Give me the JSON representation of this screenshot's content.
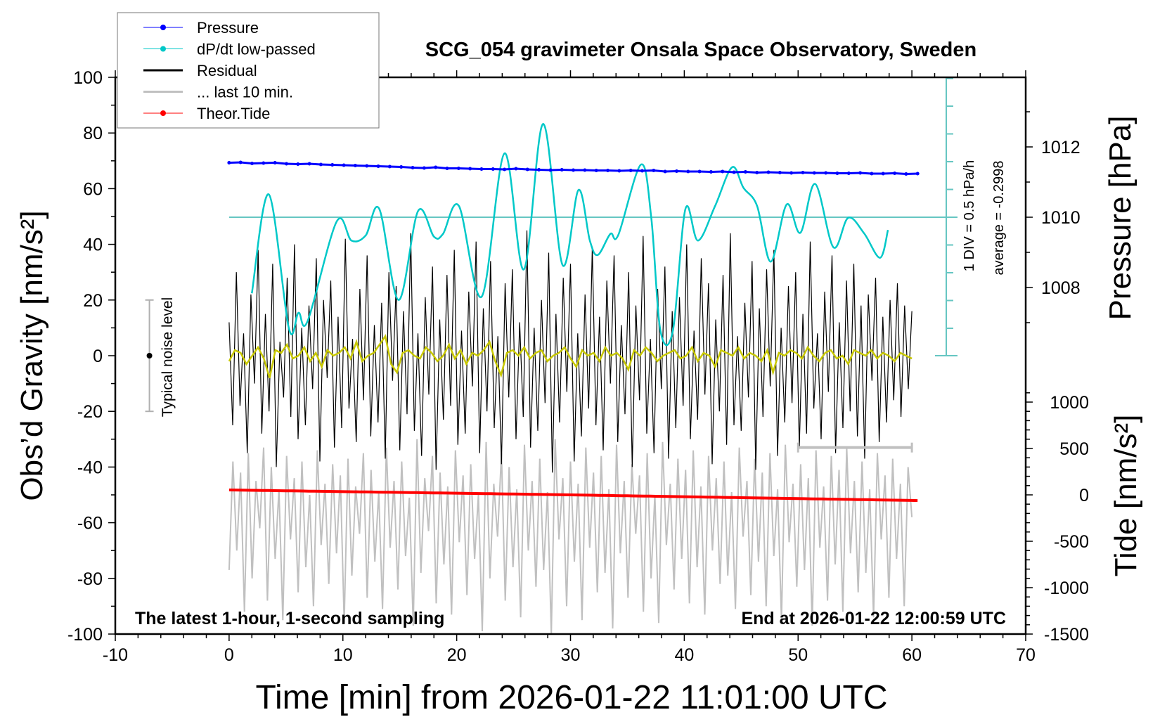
{
  "chart_data": {
    "type": "line",
    "title": "SCG_054 gravimeter Onsala Space Observatory, Sweden",
    "xlabel": "Time [min] from 2026-01-22 11:01:00 UTC",
    "ylabel_left": "Obs’d Gravity [nm/s²]",
    "ylabel_right_pressure": "Pressure [hPa]",
    "ylabel_right_tide": "Tide [nm/s²]",
    "xlim": [
      -10,
      70
    ],
    "ylim_left": [
      -100,
      100
    ],
    "ylim_tide": [
      -1500,
      1000
    ],
    "x_ticks": [
      "-10",
      "0",
      "10",
      "20",
      "30",
      "40",
      "50",
      "60",
      "70"
    ],
    "y_left_ticks": [
      "100",
      "80",
      "60",
      "40",
      "20",
      "0",
      "-20",
      "-40",
      "-60",
      "-80",
      "-100"
    ],
    "pressure_ticks": [
      "1012",
      "1010",
      "1008"
    ],
    "tide_ticks": [
      "1000",
      "500",
      "0",
      "-500",
      "-1000",
      "-1500"
    ],
    "grid": false,
    "legend_position": "top-left",
    "legend": [
      {
        "label": "Pressure",
        "color": "#0000ff",
        "marker": "dot"
      },
      {
        "label": "dP/dt low-passed",
        "color": "#00c8c8",
        "marker": "dot"
      },
      {
        "label": "Residual",
        "color": "#000000",
        "marker": "line"
      },
      {
        "label": "... last 10 min.",
        "color": "#c0c0c0",
        "marker": "line"
      },
      {
        "label": "Theor.Tide",
        "color": "#ff0000",
        "marker": "dot"
      }
    ],
    "annotations": {
      "left": "The latest 1-hour, 1-second sampling",
      "right": "End at 2026-01-22 12:00:59 UTC",
      "noise": "Typical noise level",
      "div": "1 DIV = 0.5 hPa/h",
      "average": "average = -0.2998"
    },
    "noise_level": {
      "x": -7,
      "low": -20,
      "high": 20
    },
    "last10_window": {
      "from": 50,
      "to": 60,
      "level": -33
    },
    "dpdt_average": -0.2998,
    "dpdt_div": 0.5,
    "series": {
      "pressure": {
        "t_start": 0,
        "t_end": 60.5,
        "color": "#0000ff",
        "values": [
          1011.55,
          1011.56,
          1011.53,
          1011.54,
          1011.55,
          1011.52,
          1011.51,
          1011.52,
          1011.5,
          1011.49,
          1011.48,
          1011.47,
          1011.46,
          1011.45,
          1011.44,
          1011.43,
          1011.41,
          1011.4,
          1011.42,
          1011.39,
          1011.39,
          1011.38,
          1011.37,
          1011.37,
          1011.36,
          1011.38,
          1011.36,
          1011.35,
          1011.34,
          1011.35,
          1011.34,
          1011.34,
          1011.33,
          1011.33,
          1011.32,
          1011.33,
          1011.32,
          1011.33,
          1011.3,
          1011.31,
          1011.3,
          1011.3,
          1011.29,
          1011.3,
          1011.28,
          1011.29,
          1011.27,
          1011.28,
          1011.27,
          1011.26,
          1011.27,
          1011.26,
          1011.26,
          1011.25,
          1011.25,
          1011.26,
          1011.24,
          1011.24,
          1011.25,
          1011.23,
          1011.24
        ]
      },
      "dpdt": {
        "color": "#00c8c8",
        "points": [
          [
            2.0,
            -1.67
          ],
          [
            3.5,
            0.11
          ],
          [
            5.25,
            -2.3
          ],
          [
            6.1,
            -2.02
          ],
          [
            6.9,
            -2.17
          ],
          [
            9.45,
            -0.38
          ],
          [
            10.75,
            -0.72
          ],
          [
            12.0,
            -0.63
          ],
          [
            13.2,
            -0.15
          ],
          [
            14.9,
            -1.79
          ],
          [
            16.6,
            -0.19
          ],
          [
            18.0,
            -0.65
          ],
          [
            18.8,
            -0.6
          ],
          [
            20.2,
            -0.1
          ],
          [
            22.2,
            -1.73
          ],
          [
            24.2,
            0.85
          ],
          [
            25.9,
            -1.24
          ],
          [
            27.6,
            1.38
          ],
          [
            29.3,
            -1.16
          ],
          [
            30.7,
            0.19
          ],
          [
            31.7,
            -0.72
          ],
          [
            32.4,
            -0.98
          ],
          [
            33.5,
            -0.6
          ],
          [
            34.2,
            -0.62
          ],
          [
            36.2,
            0.65
          ],
          [
            37.1,
            -0.31
          ],
          [
            37.9,
            -2.34
          ],
          [
            39.0,
            -2.34
          ],
          [
            40.1,
            -0.15
          ],
          [
            41.2,
            -0.72
          ],
          [
            42.7,
            -0.1
          ],
          [
            44.2,
            0.6
          ],
          [
            45.2,
            0.23
          ],
          [
            46.4,
            -0.1
          ],
          [
            47.6,
            -1.1
          ],
          [
            49.0,
            -0.07
          ],
          [
            50.2,
            -0.58
          ],
          [
            51.5,
            0.3
          ],
          [
            53.1,
            -0.84
          ],
          [
            54.4,
            -0.31
          ],
          [
            55.8,
            -0.59
          ],
          [
            57.2,
            -1.03
          ],
          [
            57.9,
            -0.53
          ]
        ]
      },
      "residual": {
        "t_start": 0,
        "t_end": 60,
        "color": "#000000",
        "values": [
          12,
          -25,
          30,
          -18,
          8,
          -35,
          22,
          -10,
          38,
          -28,
          15,
          -20,
          33,
          -40,
          5,
          -15,
          28,
          -22,
          40,
          -30,
          10,
          -25,
          18,
          -12,
          35,
          -38,
          20,
          -8,
          27,
          -33,
          14,
          -26,
          42,
          -19,
          6,
          -31,
          24,
          -16,
          36,
          -29,
          11,
          -24,
          19,
          -37,
          30,
          -9,
          25,
          -34,
          16,
          -21,
          44,
          -27,
          8,
          -36,
          21,
          -14,
          32,
          -41,
          13,
          -23,
          29,
          -18,
          38,
          -32,
          9,
          -28,
          23,
          -11,
          41,
          -35,
          17,
          -20,
          34,
          -26,
          7,
          -39,
          26,
          -15,
          31,
          -30,
          12,
          -22,
          45,
          -33,
          10,
          -27,
          20,
          -17,
          37,
          -42,
          15,
          -24,
          28,
          -13,
          33,
          -38,
          8,
          -29,
          22,
          -19,
          39,
          -25,
          14,
          -34,
          27,
          -10,
          36,
          -31,
          11,
          -21,
          30,
          -40,
          18,
          -16,
          43,
          -28,
          6,
          -35,
          24,
          -12,
          32,
          -37,
          16,
          -26,
          21,
          -18,
          40,
          -30,
          9,
          -23,
          35,
          -14,
          26,
          -39,
          13,
          -20,
          29,
          -32,
          44,
          -25,
          7,
          -27,
          19,
          -15,
          34,
          -41,
          17,
          -22,
          31,
          -11,
          38,
          -36,
          10,
          -24,
          25,
          -17,
          30,
          -33,
          15,
          -28,
          41,
          -19,
          8,
          -30,
          23,
          -13,
          36,
          -35,
          12,
          -26,
          27,
          -20,
          33,
          -29,
          18,
          -37,
          22,
          -9,
          28,
          -31,
          14,
          -24,
          20,
          -16,
          26,
          -22,
          18,
          -12,
          16
        ]
      },
      "residual_smoothed": {
        "t_start": 0,
        "t_end": 60,
        "color": "#c8c800",
        "values": [
          -2,
          2,
          1,
          -3,
          0,
          3,
          -1,
          -8,
          2,
          1,
          4,
          -1,
          0,
          3,
          -2,
          1,
          -4,
          2,
          0,
          1,
          3,
          -1,
          5,
          -2,
          0,
          1,
          4,
          7,
          -3,
          -6,
          1,
          2,
          0,
          -1,
          3,
          1,
          -2,
          0,
          4,
          -1,
          2,
          -3,
          1,
          0,
          2,
          5,
          -2,
          -7,
          1,
          2,
          0,
          3,
          -1,
          1,
          2,
          -2,
          0,
          1,
          3,
          -1,
          -4,
          2,
          0,
          1,
          -2,
          3,
          0,
          1,
          -1,
          -5,
          2,
          0,
          3,
          1,
          -2,
          0,
          1,
          2,
          -1,
          0,
          3,
          -2,
          1,
          0,
          -4,
          2,
          1,
          0,
          3,
          -1,
          1,
          0,
          -2,
          2,
          -6,
          1,
          0,
          2,
          1,
          -1,
          3,
          0,
          -2,
          1,
          2,
          -1,
          0,
          -3,
          2,
          1,
          0,
          2,
          -1,
          1,
          0,
          -2,
          1,
          0,
          -1
        ]
      },
      "last10": {
        "t_start": 0,
        "t_end": 60,
        "color": "#c0c0c0",
        "values": [
          -77,
          -38,
          -70,
          -42,
          -92,
          -35,
          -80,
          -45,
          -62,
          -33,
          -88,
          -40,
          -73,
          -48,
          -95,
          -36,
          -66,
          -44,
          -85,
          -38,
          -76,
          -50,
          -90,
          -34,
          -68,
          -46,
          -82,
          -39,
          -71,
          -43,
          -96,
          -37,
          -79,
          -47,
          -64,
          -35,
          -87,
          -41,
          -74,
          -49,
          -91,
          -33,
          -69,
          -45,
          -84,
          -38,
          -72,
          -51,
          -97,
          -30,
          -78,
          -44,
          -63,
          -36,
          -89,
          -42,
          -75,
          -47,
          -93,
          -34,
          -67,
          -43,
          -86,
          -39,
          -73,
          -50,
          -99,
          -31,
          -80,
          -46,
          -65,
          -35,
          -88,
          -40,
          -76,
          -48,
          -94,
          -32,
          -70,
          -45,
          -83,
          -37,
          -77,
          -49,
          -100,
          -30,
          -66,
          -44,
          -90,
          -38,
          -74,
          -46,
          -95,
          -33,
          -69,
          -42,
          -85,
          -36,
          -78,
          -48,
          -98,
          -32,
          -71,
          -45,
          -87,
          -39,
          -64,
          -43,
          -92,
          -35,
          -80,
          -50,
          -96,
          -31,
          -68,
          -46,
          -84,
          -37,
          -73,
          -41,
          -89,
          -34,
          -76,
          -47,
          -93,
          -36,
          -70,
          -44,
          -82,
          -38,
          -79,
          -49,
          -91,
          -33,
          -65,
          -45,
          -86,
          -37,
          -74,
          -42,
          -90,
          -35,
          -72,
          -48,
          -95,
          -32,
          -67,
          -46,
          -83,
          -39,
          -77,
          -44,
          -97,
          -34,
          -69,
          -47,
          -88,
          -36,
          -75,
          -41,
          -92,
          -33,
          -71,
          -45,
          -85,
          -38,
          -78,
          -48,
          -94,
          -35,
          -66,
          -43,
          -87,
          -37,
          -73,
          -46,
          -90,
          -40,
          -58
        ]
      },
      "tide": {
        "color": "#ff0000",
        "points": [
          [
            0,
            53
          ],
          [
            10,
            35
          ],
          [
            20,
            18
          ],
          [
            30,
            0
          ],
          [
            40,
            -20
          ],
          [
            50,
            -40
          ],
          [
            60.5,
            -61
          ]
        ]
      }
    }
  }
}
